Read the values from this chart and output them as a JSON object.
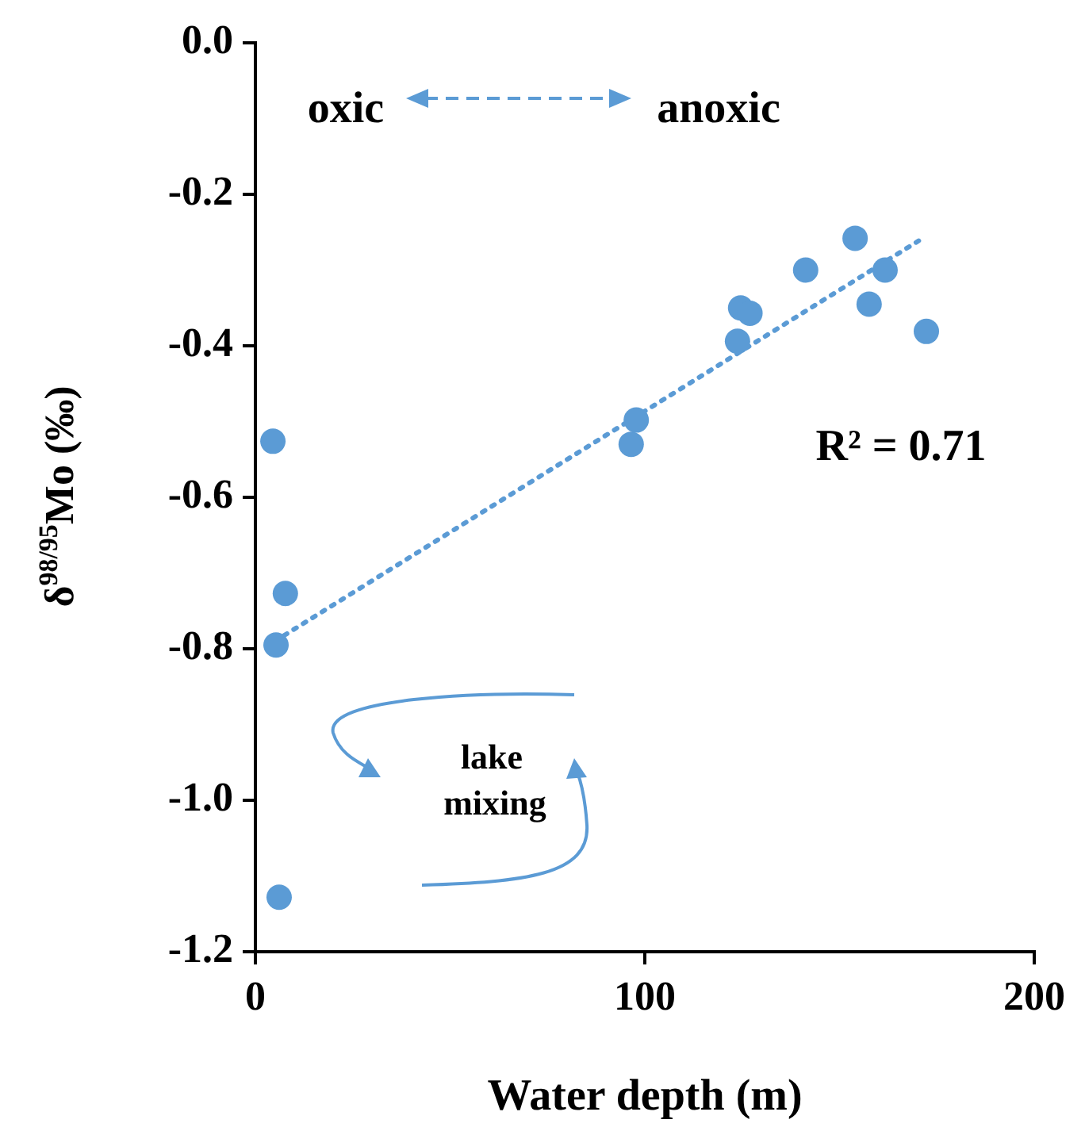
{
  "chart_data": {
    "type": "scatter",
    "xlabel": "Water depth (m)",
    "ylabel": "δ$^{98/95}$Mo (‰)",
    "series": [
      {
        "color": "#5b9bd5",
        "x": [
          4.5,
          5.3,
          7.7,
          6.1,
          96.5,
          97.8,
          123.8,
          124.6,
          127,
          141.3,
          154,
          157.6,
          161.7,
          172.3
        ],
        "values": [
          -0.526,
          -0.795,
          -0.727,
          -1.128,
          -0.53,
          -0.498,
          -0.394,
          -0.35,
          -0.357,
          -0.3,
          -0.258,
          -0.345,
          -0.3,
          -0.381
        ]
      },
      {
        "type": "line",
        "color": "#5b9bd5",
        "line_style": "dotted",
        "marker": "none",
        "x": [
          5,
          172
        ],
        "values": [
          -0.79,
          -0.256
        ]
      }
    ],
    "xlim": [
      0,
      200
    ],
    "xticks": [
      0,
      100,
      200
    ],
    "ylim": [
      -1.2,
      0
    ],
    "yticks": [
      {
        "value": -1.2,
        "label": "-1.2"
      },
      {
        "value": -1.0,
        "label": "-1.0"
      },
      {
        "value": -0.8,
        "label": "-0.8"
      },
      {
        "value": -0.6,
        "label": "-0.6"
      },
      {
        "value": -0.4,
        "label": "-0.4"
      },
      {
        "value": -0.2,
        "label": "-0.2"
      },
      {
        "value": 0,
        "label": "0.0"
      }
    ],
    "grid": false,
    "legend": false,
    "marker": "circle",
    "annotations": [
      "oxic",
      "anoxic",
      "R² = 0.71",
      "lake mixing"
    ]
  }
}
